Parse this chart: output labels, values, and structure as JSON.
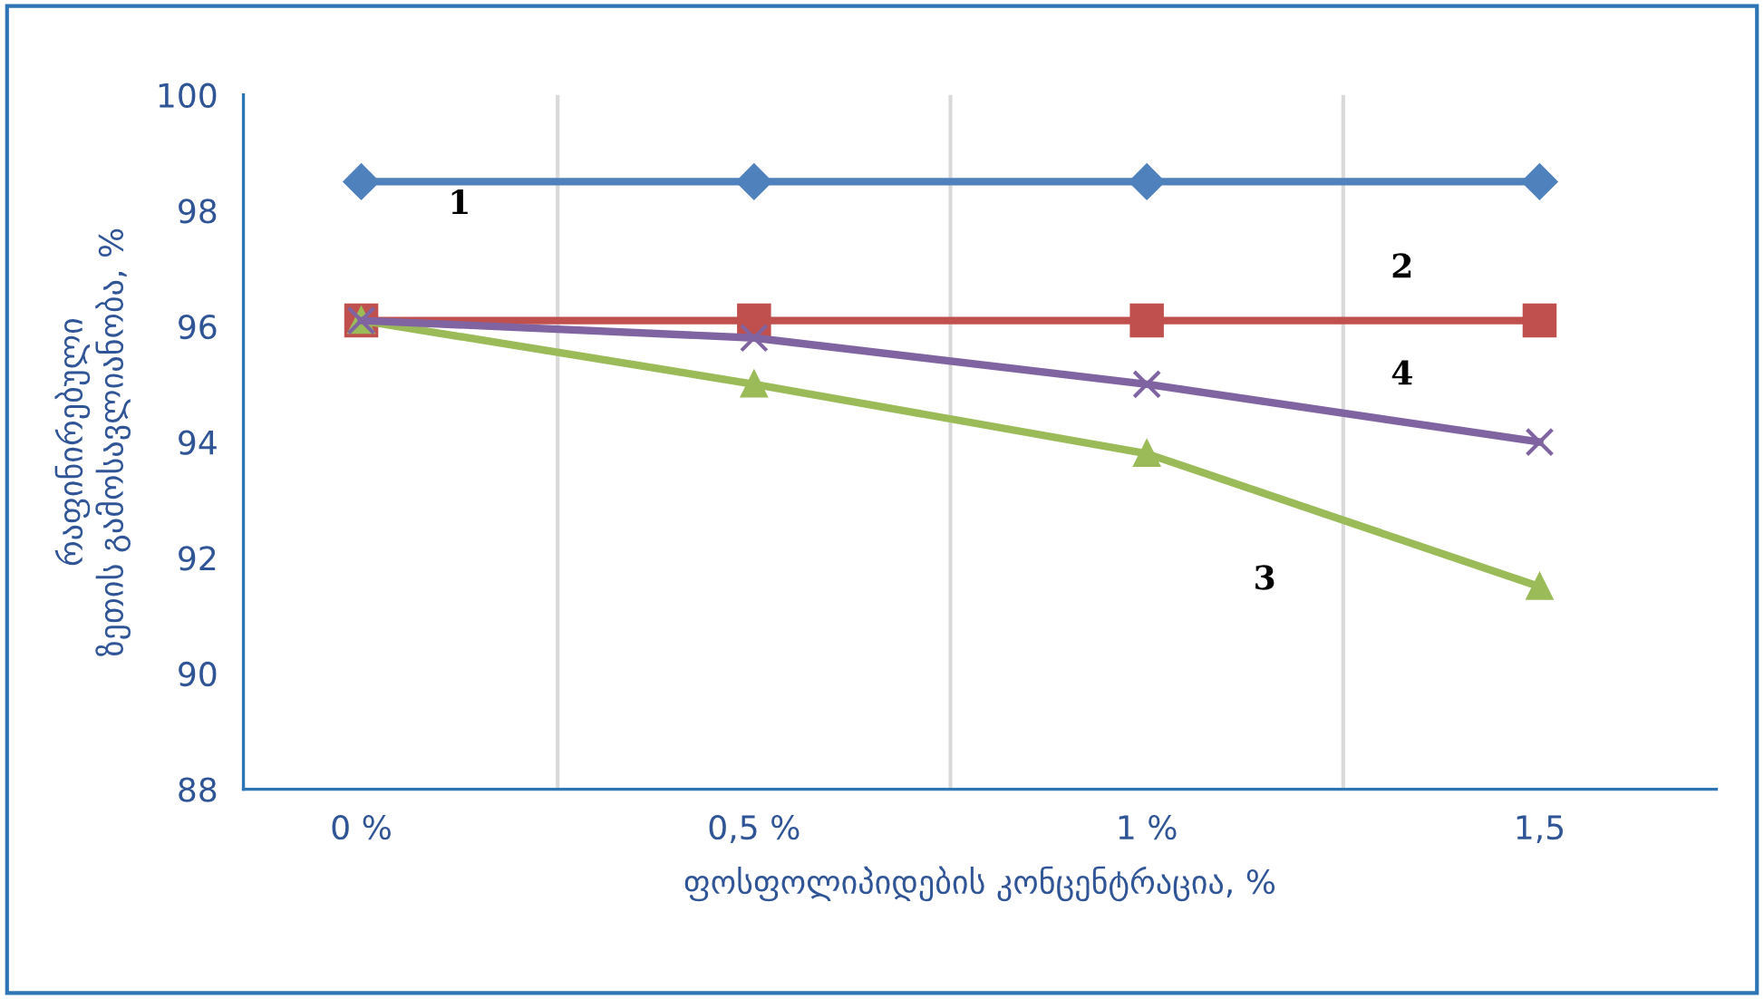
{
  "chart_data": {
    "type": "line",
    "xlabel": "ფოსფოლიპიდების კონცენტრაცია, %",
    "ylabel": "რაფინირებული\nზეთის გამოსავლიანობა, %",
    "categories": [
      "0 %",
      "0,5 %",
      "1 %",
      "1,5"
    ],
    "series": [
      {
        "name": "1",
        "color": "#4f81bd",
        "marker": "diamond",
        "values": [
          98.5,
          98.5,
          98.5,
          98.5
        ]
      },
      {
        "name": "2",
        "color": "#c0504d",
        "marker": "square",
        "values": [
          96.1,
          96.1,
          96.1,
          96.1
        ]
      },
      {
        "name": "3",
        "color": "#9bbb59",
        "marker": "triangle",
        "values": [
          96.1,
          95.0,
          93.8,
          91.5
        ]
      },
      {
        "name": "4",
        "color": "#8064a2",
        "marker": "cross",
        "values": [
          96.1,
          95.8,
          95.0,
          94.0
        ]
      }
    ],
    "ylim": [
      88,
      100
    ],
    "yticks": [
      88,
      90,
      92,
      94,
      96,
      98,
      100
    ],
    "grid": "x",
    "legend": false
  }
}
